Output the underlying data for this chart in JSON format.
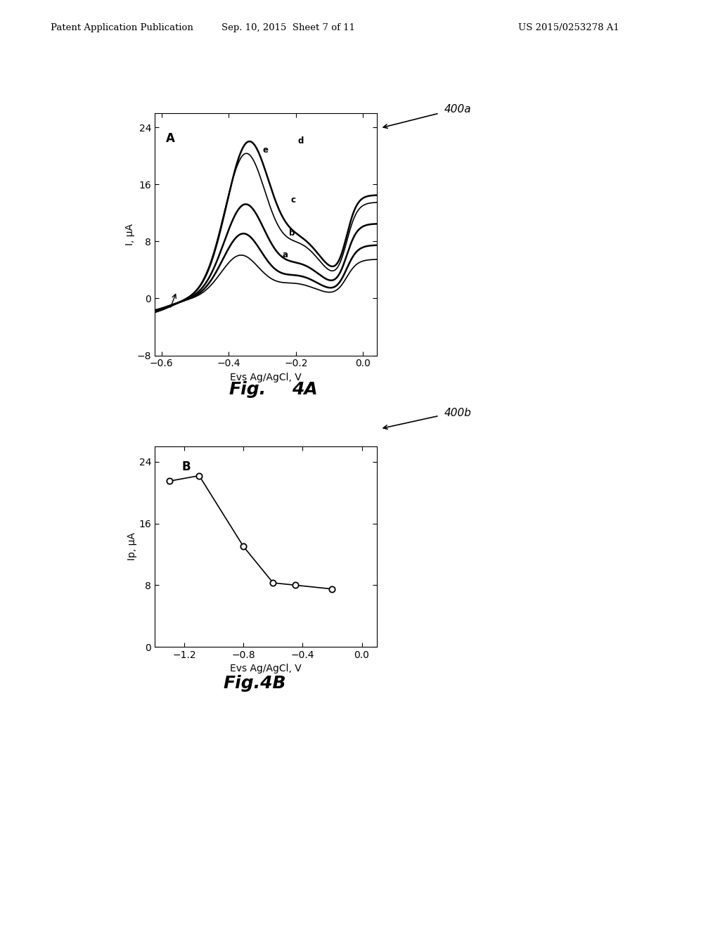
{
  "header_left": "Patent Application Publication",
  "header_mid": "Sep. 10, 2015  Sheet 7 of 11",
  "header_right": "US 2015/0253278 A1",
  "fig4a_label": "A",
  "fig4a_xlabel": "Evs Ag/AgCl, V",
  "fig4a_ylabel": "I, μA",
  "fig4a_xlim": [
    -0.62,
    0.04
  ],
  "fig4a_ylim": [
    -8,
    26
  ],
  "fig4a_xticks": [
    -0.6,
    -0.4,
    -0.2,
    0.0
  ],
  "fig4a_yticks": [
    -8,
    0,
    8,
    16,
    24
  ],
  "fig4a_ref": "400a",
  "fig4b_label": "B",
  "fig4b_xlabel": "Evs Ag/AgCl, V",
  "fig4b_ylabel": "Ip, μA",
  "fig4b_xlim": [
    -1.4,
    0.1
  ],
  "fig4b_ylim": [
    0,
    26
  ],
  "fig4b_xticks": [
    -1.2,
    -0.8,
    -0.4,
    0.0
  ],
  "fig4b_yticks": [
    0,
    8,
    16,
    24
  ],
  "fig4b_ref": "400b",
  "fig4b_x": [
    -1.3,
    -1.1,
    -0.8,
    -0.6,
    -0.45,
    -0.2
  ],
  "fig4b_y": [
    21.5,
    22.2,
    13.0,
    8.3,
    8.0,
    7.5
  ]
}
